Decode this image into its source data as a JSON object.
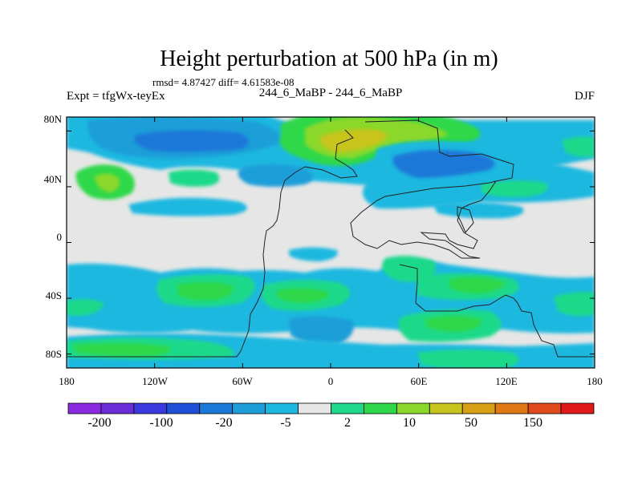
{
  "chart_data": {
    "type": "heatmap",
    "title": "Height perturbation at 500 hPa (in m)",
    "stats_label": "rmsd= 4.87427 diff= 4.61583e-08",
    "left_label": "Expt = tfgWx-teyEx",
    "center_label": "244_6_MaBP - 244_6_MaBP",
    "right_label": "DJF",
    "xlim": [
      -180,
      180
    ],
    "ylim": [
      -90,
      90
    ],
    "x_ticks": [
      {
        "value": -180,
        "label": "180"
      },
      {
        "value": -120,
        "label": "120W"
      },
      {
        "value": -60,
        "label": "60W"
      },
      {
        "value": 0,
        "label": "0"
      },
      {
        "value": 60,
        "label": "60E"
      },
      {
        "value": 120,
        "label": "120E"
      },
      {
        "value": 180,
        "label": "180"
      }
    ],
    "y_ticks": [
      {
        "value": 80,
        "label": "80N"
      },
      {
        "value": 40,
        "label": "40N"
      },
      {
        "value": 0,
        "label": "0"
      },
      {
        "value": -40,
        "label": "40S"
      },
      {
        "value": -80,
        "label": "80S"
      }
    ],
    "colorbar": {
      "colors": [
        "#8a2be2",
        "#6a2ed9",
        "#3a3ae0",
        "#2050d8",
        "#1a78d8",
        "#1e9ed8",
        "#1cb8e0",
        "#e6e6e6",
        "#1ed98a",
        "#2ed84a",
        "#8ad82a",
        "#c8c41e",
        "#d8a014",
        "#e07814",
        "#e04a1c",
        "#e01a1a"
      ],
      "labels": [
        {
          "index": 1,
          "text": "-200"
        },
        {
          "index": 3,
          "text": "-100"
        },
        {
          "index": 5,
          "text": "-20"
        },
        {
          "index": 7,
          "text": "-5"
        },
        {
          "index": 8,
          "text": "2"
        },
        {
          "index": 10,
          "text": "10"
        },
        {
          "index": 12,
          "text": "50"
        },
        {
          "index": 14,
          "text": "150"
        }
      ]
    },
    "field_features": [
      {
        "name": "arctic-high-europe",
        "lon": 20,
        "lat": 66,
        "value": 40
      },
      {
        "name": "north-pacific-low",
        "lon": -120,
        "lat": 68,
        "value": -15
      },
      {
        "name": "north-atlantic-low",
        "lon": -50,
        "lat": 72,
        "value": -10
      },
      {
        "name": "central-asia-low",
        "lon": 75,
        "lat": 45,
        "value": -15
      },
      {
        "name": "north-pacific-high",
        "lon": -142,
        "lat": 42,
        "value": 15
      },
      {
        "name": "east-pacific-band",
        "lon": -100,
        "lat": 22,
        "value": -4
      },
      {
        "name": "southern-pacific-high",
        "lon": -100,
        "lat": -32,
        "value": 10
      },
      {
        "name": "south-atlantic-high",
        "lon": -20,
        "lat": -37,
        "value": 8
      },
      {
        "name": "southern-indian-high",
        "lon": 50,
        "lat": -25,
        "value": 5
      },
      {
        "name": "southern-ocean-high",
        "lon": 85,
        "lat": -55,
        "value": 6
      },
      {
        "name": "antarctic-band",
        "lon": -130,
        "lat": -80,
        "value": 5
      }
    ]
  }
}
